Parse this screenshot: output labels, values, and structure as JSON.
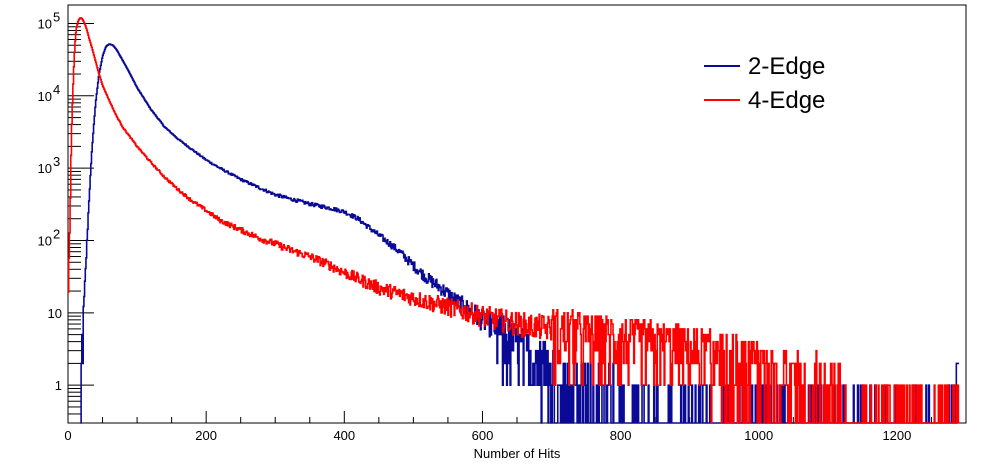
{
  "chart_data": {
    "type": "line",
    "title": "",
    "xlabel": "Number of Hits",
    "ylabel": "",
    "xlim": [
      0,
      1300
    ],
    "ylim": [
      0.3,
      180000
    ],
    "yscale": "log",
    "grid": false,
    "legend": "top-right",
    "x_ticks": [
      {
        "value": 0,
        "label": "0"
      },
      {
        "value": 200,
        "label": "200"
      },
      {
        "value": 400,
        "label": "400"
      },
      {
        "value": 600,
        "label": "600"
      },
      {
        "value": 800,
        "label": "800"
      },
      {
        "value": 1000,
        "label": "1000"
      },
      {
        "value": 1200,
        "label": "1200"
      }
    ],
    "y_ticks": [
      {
        "value": 1,
        "base": "1",
        "exp": ""
      },
      {
        "value": 10,
        "base": "10",
        "exp": ""
      },
      {
        "value": 100,
        "base": "10",
        "exp": "2"
      },
      {
        "value": 1000,
        "base": "10",
        "exp": "3"
      },
      {
        "value": 10000,
        "base": "10",
        "exp": "4"
      },
      {
        "value": 100000,
        "base": "10",
        "exp": "5"
      }
    ],
    "series": [
      {
        "name": "2-Edge",
        "color": "#0a0a96",
        "x": [
          18,
          20,
          25,
          30,
          35,
          40,
          45,
          50,
          55,
          60,
          65,
          70,
          80,
          90,
          100,
          120,
          140,
          160,
          180,
          200,
          220,
          250,
          280,
          300,
          320,
          350,
          380,
          400,
          420,
          440,
          460,
          480,
          500,
          520,
          540,
          560,
          580,
          600,
          620,
          640,
          660,
          680,
          700,
          720,
          750,
          780,
          800,
          850,
          900,
          950,
          1000,
          1050,
          1100,
          1150,
          1200,
          1250,
          1280,
          1290
        ],
        "y": [
          0.3,
          3,
          30,
          300,
          2000,
          8000,
          20000,
          35000,
          48000,
          52000,
          50000,
          44000,
          30000,
          20000,
          13000,
          6500,
          3700,
          2500,
          1800,
          1300,
          1000,
          700,
          520,
          430,
          380,
          320,
          280,
          250,
          200,
          140,
          100,
          70,
          45,
          30,
          22,
          15,
          11,
          8,
          6,
          4,
          3,
          2.5,
          2,
          1.5,
          1.2,
          1,
          0.8,
          0.7,
          0.6,
          0.55,
          0.5,
          0.5,
          0.5,
          0.45,
          0.45,
          0.45,
          0.6,
          1.5
        ]
      },
      {
        "name": "4-Edge",
        "color": "#ff0000",
        "x": [
          0,
          3,
          5,
          8,
          10,
          12,
          15,
          18,
          20,
          22,
          25,
          28,
          30,
          35,
          40,
          45,
          50,
          60,
          70,
          80,
          100,
          120,
          140,
          160,
          180,
          200,
          220,
          250,
          280,
          300,
          320,
          350,
          380,
          400,
          450,
          500,
          550,
          600,
          650,
          700,
          750,
          800,
          850,
          900,
          950,
          1000,
          1050,
          1100,
          1150,
          1200,
          1250,
          1290
        ],
        "y": [
          15,
          200,
          3000,
          20000,
          50000,
          85000,
          110000,
          120000,
          118000,
          110000,
          95000,
          78000,
          65000,
          45000,
          30000,
          20000,
          14000,
          8500,
          5300,
          3600,
          2000,
          1200,
          750,
          500,
          350,
          260,
          190,
          140,
          105,
          90,
          75,
          60,
          45,
          36,
          22,
          16,
          12,
          9,
          7,
          6,
          5,
          4.5,
          3.8,
          3.2,
          2.6,
          2,
          1.6,
          1.2,
          0.9,
          0.7,
          0.6,
          0.5
        ]
      }
    ]
  }
}
